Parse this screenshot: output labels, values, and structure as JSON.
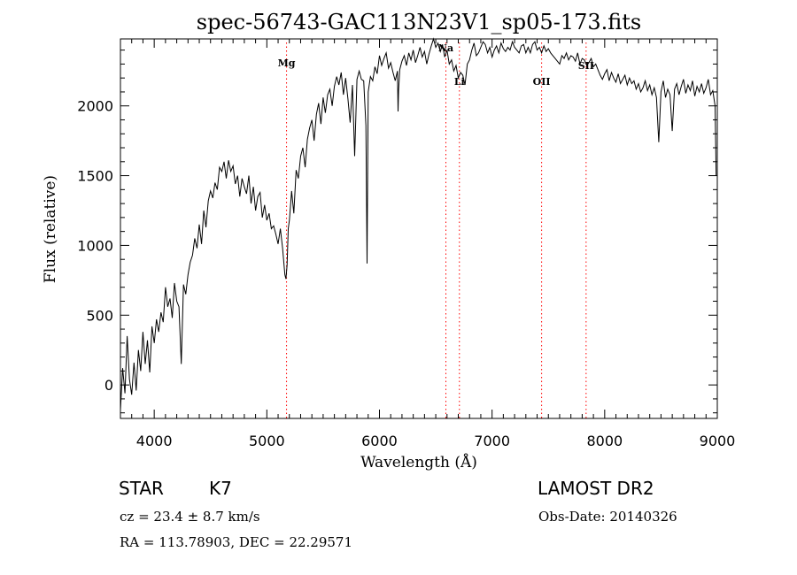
{
  "info": {
    "object_class": "STAR",
    "subclass": "K7",
    "survey": "LAMOST DR2",
    "cz_line": "cz = 23.4 ± 8.7 km/s",
    "obs_date": "Obs-Date: 20140326",
    "coords": "RA = 113.78903, DEC =  22.29571"
  },
  "chart_data": {
    "type": "line",
    "title": "spec-56743-GAC113N23V1_sp05-173.fits",
    "xlabel": "Wavelength (Å)",
    "ylabel": "Flux (relative)",
    "xlim": [
      3700,
      9000
    ],
    "ylim": [
      -240,
      2480
    ],
    "x_ticks": [
      4000,
      5000,
      6000,
      7000,
      8000,
      9000
    ],
    "y_ticks": [
      0,
      500,
      1000,
      1500,
      2000
    ],
    "x_tick_labels": [
      "4000",
      "5000",
      "6000",
      "7000",
      "8000",
      "9000"
    ],
    "y_tick_labels": [
      "0",
      "500",
      "1000",
      "1500",
      "2000"
    ],
    "grid": false,
    "line_color": "#000000",
    "marker_color": "#ff0000",
    "spectral_lines": [
      {
        "label": "Mg",
        "wavelength": 5175
      },
      {
        "label": "Na",
        "wavelength": 6590
      },
      {
        "label": "Li",
        "wavelength": 6710
      },
      {
        "label": "OII",
        "wavelength": 7440
      },
      {
        "label": "SII",
        "wavelength": 7835
      }
    ],
    "series": [
      {
        "x": [
          3700,
          3720,
          3740,
          3760,
          3780,
          3800,
          3820,
          3840,
          3860,
          3880,
          3900,
          3920,
          3940,
          3960,
          3980,
          4000,
          4020,
          4040,
          4060,
          4080,
          4100,
          4120,
          4140,
          4160,
          4180,
          4200,
          4220,
          4240,
          4260,
          4280,
          4300,
          4320,
          4340,
          4360,
          4380,
          4400,
          4420,
          4440,
          4460,
          4480,
          4500,
          4520,
          4540,
          4560,
          4580,
          4600,
          4620,
          4640,
          4660,
          4680,
          4700,
          4720,
          4740,
          4760,
          4780,
          4800,
          4820,
          4840,
          4860,
          4880,
          4900,
          4920,
          4940,
          4960,
          4980,
          5000,
          5020,
          5040,
          5060,
          5080,
          5100,
          5120,
          5140,
          5160,
          5170,
          5180,
          5190,
          5200,
          5220,
          5240,
          5260,
          5280,
          5300,
          5320,
          5340,
          5360,
          5380,
          5400,
          5420,
          5440,
          5460,
          5480,
          5500,
          5520,
          5540,
          5560,
          5580,
          5600,
          5620,
          5640,
          5660,
          5680,
          5700,
          5720,
          5740,
          5760,
          5780,
          5800,
          5820,
          5840,
          5860,
          5880,
          5890,
          5900,
          5920,
          5940,
          5960,
          5980,
          6000,
          6020,
          6040,
          6060,
          6080,
          6100,
          6120,
          6140,
          6160,
          6165,
          6170,
          6180,
          6200,
          6220,
          6240,
          6260,
          6280,
          6300,
          6320,
          6340,
          6360,
          6380,
          6400,
          6420,
          6440,
          6460,
          6480,
          6500,
          6520,
          6540,
          6560,
          6580,
          6600,
          6620,
          6640,
          6660,
          6680,
          6700,
          6720,
          6740,
          6760,
          6780,
          6800,
          6820,
          6840,
          6860,
          6880,
          6900,
          6920,
          6940,
          6960,
          6980,
          7000,
          7020,
          7040,
          7060,
          7080,
          7100,
          7120,
          7140,
          7160,
          7180,
          7200,
          7220,
          7240,
          7260,
          7280,
          7300,
          7320,
          7340,
          7360,
          7380,
          7400,
          7420,
          7440,
          7460,
          7480,
          7500,
          7520,
          7540,
          7560,
          7580,
          7600,
          7620,
          7640,
          7660,
          7680,
          7700,
          7720,
          7740,
          7760,
          7780,
          7800,
          7820,
          7840,
          7860,
          7880,
          7900,
          7920,
          7940,
          7960,
          7980,
          8000,
          8020,
          8040,
          8060,
          8080,
          8100,
          8120,
          8140,
          8160,
          8180,
          8200,
          8220,
          8240,
          8260,
          8280,
          8300,
          8320,
          8340,
          8360,
          8380,
          8400,
          8420,
          8440,
          8460,
          8480,
          8500,
          8520,
          8540,
          8560,
          8580,
          8600,
          8620,
          8640,
          8660,
          8680,
          8700,
          8720,
          8740,
          8760,
          8780,
          8800,
          8820,
          8840,
          8860,
          8880,
          8900,
          8920,
          8940,
          8960,
          8980,
          8990
        ],
        "y": [
          -180,
          120,
          -60,
          350,
          40,
          -70,
          160,
          -40,
          250,
          100,
          380,
          150,
          320,
          90,
          420,
          300,
          470,
          380,
          520,
          450,
          700,
          560,
          620,
          480,
          730,
          600,
          560,
          150,
          720,
          650,
          790,
          880,
          930,
          1050,
          980,
          1150,
          1010,
          1250,
          1130,
          1320,
          1390,
          1340,
          1450,
          1400,
          1560,
          1530,
          1600,
          1480,
          1610,
          1530,
          1570,
          1440,
          1500,
          1350,
          1480,
          1420,
          1370,
          1500,
          1300,
          1420,
          1250,
          1350,
          1380,
          1200,
          1290,
          1180,
          1230,
          1120,
          1140,
          1080,
          1010,
          1120,
          980,
          790,
          760,
          860,
          1120,
          1180,
          1390,
          1230,
          1540,
          1480,
          1640,
          1700,
          1560,
          1760,
          1840,
          1900,
          1750,
          1940,
          2020,
          1870,
          2060,
          1950,
          2080,
          2120,
          2000,
          2140,
          2210,
          2150,
          2240,
          2080,
          2200,
          2050,
          1880,
          2150,
          1640,
          2190,
          2250,
          2190,
          2180,
          1860,
          870,
          2100,
          2210,
          2180,
          2280,
          2230,
          2360,
          2290,
          2340,
          2380,
          2270,
          2310,
          2240,
          2180,
          2250,
          1960,
          2110,
          2260,
          2320,
          2360,
          2290,
          2380,
          2330,
          2400,
          2310,
          2360,
          2420,
          2350,
          2390,
          2300,
          2370,
          2430,
          2480,
          2420,
          2450,
          2390,
          2440,
          2350,
          2400,
          2300,
          2330,
          2250,
          2290,
          2200,
          2240,
          2220,
          2150,
          2300,
          2330,
          2400,
          2450,
          2360,
          2380,
          2420,
          2460,
          2440,
          2380,
          2420,
          2350,
          2400,
          2430,
          2380,
          2450,
          2410,
          2390,
          2420,
          2400,
          2460,
          2420,
          2400,
          2380,
          2430,
          2440,
          2380,
          2420,
          2380,
          2440,
          2460,
          2400,
          2420,
          2380,
          2430,
          2390,
          2410,
          2380,
          2360,
          2340,
          2320,
          2300,
          2360,
          2340,
          2380,
          2330,
          2360,
          2350,
          2320,
          2380,
          2300,
          2340,
          2330,
          2290,
          2310,
          2340,
          2280,
          2300,
          2260,
          2220,
          2190,
          2230,
          2260,
          2180,
          2240,
          2200,
          2170,
          2230,
          2160,
          2190,
          2220,
          2150,
          2200,
          2160,
          2180,
          2120,
          2160,
          2100,
          2130,
          2180,
          2110,
          2150,
          2080,
          2130,
          2060,
          1740,
          2100,
          2180,
          2060,
          2120,
          2080,
          1820,
          2120,
          2160,
          2080,
          2140,
          2190,
          2090,
          2150,
          2110,
          2180,
          2070,
          2140,
          2100,
          2160,
          2090,
          2130,
          2190,
          2080,
          2110,
          2000,
          1500
        ]
      }
    ]
  }
}
